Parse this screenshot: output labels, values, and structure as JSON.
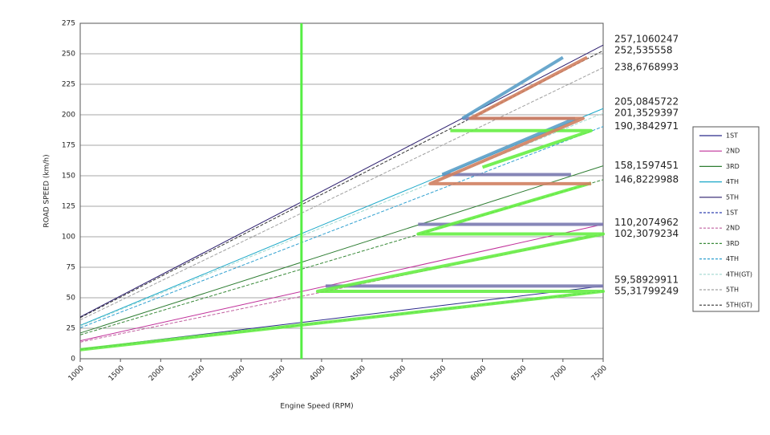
{
  "chart_data": {
    "type": "line",
    "xlabel": "Engine Speed (RPM)",
    "ylabel": "ROAD SPEED (km/h)",
    "xlim": [
      1000,
      7500
    ],
    "ylim": [
      0,
      275
    ],
    "xticks": [
      1000,
      1500,
      2000,
      2500,
      3000,
      3500,
      4000,
      4500,
      5000,
      5500,
      6000,
      6500,
      7000,
      7500
    ],
    "yticks": [
      0,
      25,
      50,
      75,
      100,
      125,
      150,
      175,
      200,
      225,
      250,
      275
    ],
    "grid": true,
    "legend": "right",
    "x": [
      1000,
      7500
    ],
    "series": [
      {
        "name": "1ST",
        "color": "#2a2a8a",
        "dashed": false,
        "values": [
          7.945,
          59.58929911
        ],
        "value_labels": [
          null,
          "59,58929911"
        ]
      },
      {
        "name": "2ND",
        "color": "#c0309a",
        "dashed": false,
        "values": [
          14.694,
          110.2074962
        ],
        "value_labels": [
          null,
          "110,2074962"
        ]
      },
      {
        "name": "3RD",
        "color": "#2e7d32",
        "dashed": false,
        "values": [
          21.088,
          158.1597451
        ],
        "value_labels": [
          null,
          "158,1597451"
        ]
      },
      {
        "name": "4TH",
        "color": "#1aa8c8",
        "dashed": false,
        "values": [
          27.345,
          205.0845722
        ],
        "value_labels": [
          null,
          "205,0845722"
        ]
      },
      {
        "name": "5TH",
        "color": "#2c1e6e",
        "dashed": false,
        "values": [
          34.281,
          257.1060247
        ],
        "value_labels": [
          null,
          "257,1060247"
        ]
      },
      {
        "name": "1ST",
        "color": "#3040b0",
        "dashed": true,
        "values": [
          7.376,
          55.31799249
        ],
        "value_labels": [
          null,
          "55,31799249"
        ]
      },
      {
        "name": "2ND",
        "color": "#c060a0",
        "dashed": true,
        "values": [
          13.641,
          102.3079234
        ],
        "value_labels": [
          null,
          "102,3079234"
        ]
      },
      {
        "name": "3RD",
        "color": "#3a8a3a",
        "dashed": true,
        "values": [
          19.576,
          146.8229988
        ],
        "value_labels": [
          null,
          "146,8229988"
        ]
      },
      {
        "name": "4TH",
        "color": "#30a0d0",
        "dashed": true,
        "values": [
          25.385,
          190.3842971
        ],
        "value_labels": [
          null,
          "190,3842971"
        ]
      },
      {
        "name": "4TH(GT)",
        "color": "#a0d8d0",
        "dashed": true,
        "values": [
          26.847,
          201.3529397
        ],
        "value_labels": [
          null,
          "201,3529397"
        ]
      },
      {
        "name": "5TH",
        "color": "#a0a0a0",
        "dashed": true,
        "values": [
          31.824,
          238.6768993
        ],
        "value_labels": [
          null,
          "238,6768993"
        ]
      },
      {
        "name": "5TH(GT)",
        "color": "#333333",
        "dashed": true,
        "values": [
          33.671,
          252.535558
        ],
        "value_labels": [
          null,
          "252,535558"
        ]
      }
    ],
    "shift_paths": [
      {
        "color": "#7a7ab0",
        "x": [
          4050,
          7500,
          null,
          5200,
          7500,
          null,
          5500,
          7100,
          null,
          5750,
          7150
        ],
        "y": [
          59.6,
          59.6,
          null,
          110.2,
          110.2,
          null,
          151,
          151,
          null,
          197,
          197
        ]
      },
      {
        "color": "#5a9ec8",
        "x": [
          5500,
          7150,
          null,
          5750,
          7000
        ],
        "y": [
          151,
          197,
          null,
          197,
          247
        ]
      },
      {
        "color": "#66ee44",
        "x": [
          1000,
          7500,
          3950,
          7500,
          5200,
          7350,
          null,
          6000,
          7350,
          5600
        ],
        "y": [
          7.4,
          55.3,
          55.3,
          102.3,
          102.3,
          144,
          null,
          157,
          187,
          187
        ]
      },
      {
        "color": "#d08060",
        "x": [
          7350,
          5350,
          7250,
          5850,
          7300
        ],
        "y": [
          143.5,
          143.5,
          197,
          197,
          247
        ]
      }
    ],
    "vline": {
      "x": 3750,
      "color": "#55ee44"
    }
  }
}
